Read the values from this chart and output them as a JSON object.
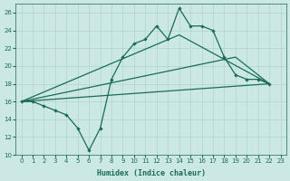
{
  "xlabel": "Humidex (Indice chaleur)",
  "xlim": [
    -0.5,
    23.5
  ],
  "ylim": [
    10,
    27
  ],
  "yticks": [
    10,
    12,
    14,
    16,
    18,
    20,
    22,
    24,
    26
  ],
  "xticks": [
    0,
    1,
    2,
    3,
    4,
    5,
    6,
    7,
    8,
    9,
    10,
    11,
    12,
    13,
    14,
    15,
    16,
    17,
    18,
    19,
    20,
    21,
    22,
    23
  ],
  "bg_color": "#cce8e4",
  "line_color": "#1a6b5a",
  "series": {
    "line1_x": [
      0,
      1,
      2,
      3,
      4,
      5,
      6,
      7,
      8,
      9,
      10,
      11,
      12,
      13,
      14,
      15,
      16,
      17,
      18,
      19,
      20,
      21,
      22
    ],
    "line1_y": [
      16,
      16,
      15.5,
      15,
      14.5,
      13,
      10.5,
      13,
      18.5,
      21,
      22.5,
      23,
      24.5,
      23,
      26.5,
      24.5,
      24.5,
      24,
      21,
      19,
      18.5,
      18.5,
      18
    ],
    "line2_x": [
      0,
      22
    ],
    "line2_y": [
      16,
      18
    ],
    "line3_x": [
      0,
      14,
      22
    ],
    "line3_y": [
      16,
      23.5,
      18
    ],
    "line4_x": [
      0,
      19,
      22
    ],
    "line4_y": [
      16,
      21,
      18
    ]
  }
}
